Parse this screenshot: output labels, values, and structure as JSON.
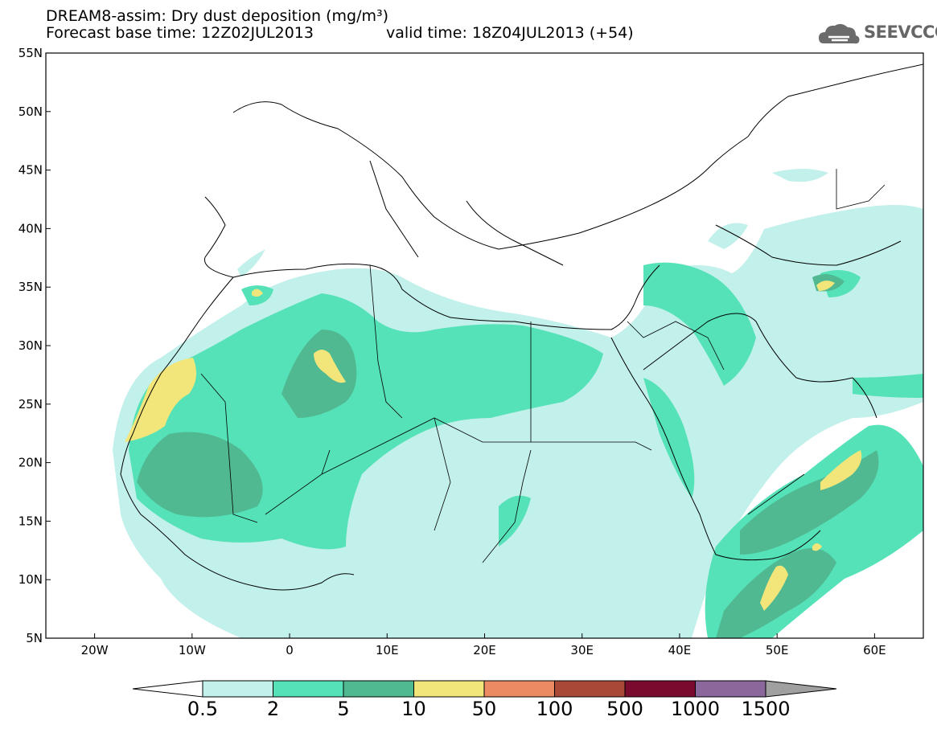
{
  "header": {
    "title_line1": "DREAM8-assim: Dry dust deposition (mg/m³)",
    "title_line2": "Forecast base time: 12Z02JUL2013",
    "valid_time": "valid time: 18Z04JUL2013 (+54)",
    "logo_text": "SEEVCCC"
  },
  "map": {
    "lat_labels": [
      "55N",
      "50N",
      "45N",
      "40N",
      "35N",
      "30N",
      "25N",
      "20N",
      "15N",
      "10N",
      "5N"
    ],
    "lon_labels": [
      "20W",
      "10W",
      "0",
      "10E",
      "20E",
      "30E",
      "40E",
      "50E",
      "60E"
    ],
    "lon_range": [
      -25,
      65
    ],
    "lat_range": [
      5,
      55
    ]
  },
  "legend": {
    "labels": [
      "0.5",
      "2",
      "5",
      "10",
      "50",
      "100",
      "500",
      "1000",
      "1500"
    ],
    "colors": [
      "#c2f0ea",
      "#55e2b8",
      "#51b992",
      "#f2e67a",
      "#ec8a63",
      "#aa4838",
      "#7a0a2e",
      "#8a689c"
    ],
    "under_color": "#ffffff",
    "over_color": "#a0a0a0"
  }
}
